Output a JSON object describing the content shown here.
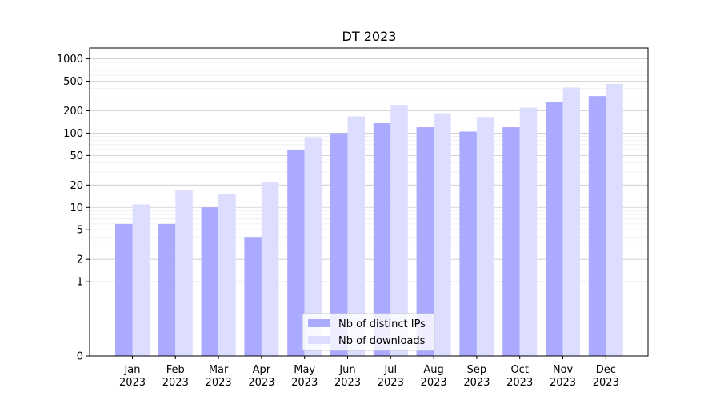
{
  "chart_data": {
    "type": "bar",
    "title": "DT 2023",
    "xlabel": "",
    "ylabel": "",
    "yscale": "symlog",
    "ylim": [
      0,
      1400
    ],
    "yticks": [
      0,
      1,
      2,
      5,
      10,
      20,
      50,
      100,
      200,
      500,
      1000
    ],
    "ytick_labels": [
      "0",
      "1",
      "2",
      "5",
      "10",
      "20",
      "50",
      "100",
      "200",
      "500",
      "1000"
    ],
    "grid": true,
    "legend_position": "bottom-center",
    "categories": [
      "Jan\n2023",
      "Feb\n2023",
      "Mar\n2023",
      "Apr\n2023",
      "May\n2023",
      "Jun\n2023",
      "Jul\n2023",
      "Aug\n2023",
      "Sep\n2023",
      "Oct\n2023",
      "Nov\n2023",
      "Dec\n2023"
    ],
    "series": [
      {
        "name": "Nb of distinct IPs",
        "color": "#aaaaff",
        "values": [
          6,
          6,
          10,
          4,
          60,
          100,
          136,
          120,
          105,
          120,
          265,
          315
        ]
      },
      {
        "name": "Nb of downloads",
        "color": "#ddddff",
        "values": [
          11,
          17,
          15,
          22,
          88,
          168,
          240,
          185,
          165,
          220,
          410,
          460
        ]
      }
    ]
  }
}
